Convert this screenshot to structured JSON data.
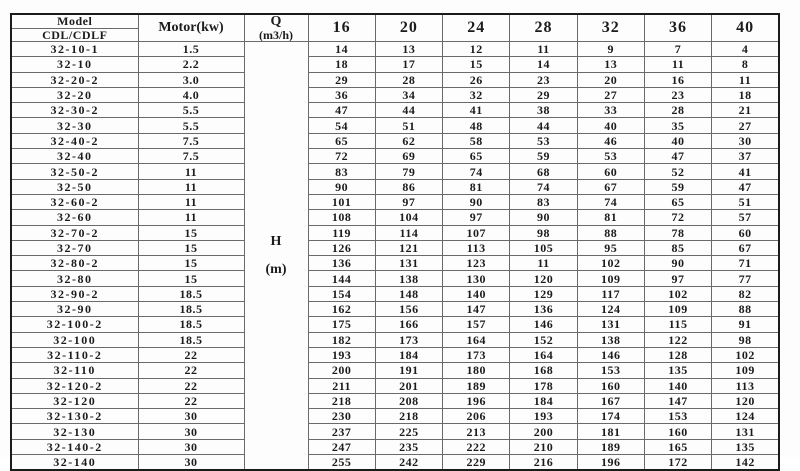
{
  "colors": {
    "background": "#fdfdfd",
    "border_dark": "#1b1b1b",
    "border_light": "#6a6a6a",
    "text": "#1c1c1c"
  },
  "table": {
    "header": {
      "model_title": "Model",
      "model_subtitle": "CDL/CDLF",
      "motor_label": "Motor(kw)",
      "q_label_line1": "Q",
      "q_label_line2": "(m3/h)",
      "flow_columns": [
        "16",
        "20",
        "24",
        "28",
        "32",
        "36",
        "40"
      ]
    },
    "h_label": {
      "line1": "H",
      "line2": "(m)"
    },
    "rows": [
      {
        "model": "32-10-1",
        "motor": "1.5",
        "values": [
          14,
          13,
          12,
          11,
          9,
          7,
          4
        ]
      },
      {
        "model": "32-10",
        "motor": "2.2",
        "values": [
          18,
          17,
          15,
          14,
          13,
          11,
          8
        ]
      },
      {
        "model": "32-20-2",
        "motor": "3.0",
        "values": [
          29,
          28,
          26,
          23,
          20,
          16,
          11
        ]
      },
      {
        "model": "32-20",
        "motor": "4.0",
        "values": [
          36,
          34,
          32,
          29,
          27,
          23,
          18
        ]
      },
      {
        "model": "32-30-2",
        "motor": "5.5",
        "values": [
          47,
          44,
          41,
          38,
          33,
          28,
          21
        ]
      },
      {
        "model": "32-30",
        "motor": "5.5",
        "values": [
          54,
          51,
          48,
          44,
          40,
          35,
          27
        ]
      },
      {
        "model": "32-40-2",
        "motor": "7.5",
        "values": [
          65,
          62,
          58,
          53,
          46,
          40,
          30
        ]
      },
      {
        "model": "32-40",
        "motor": "7.5",
        "values": [
          72,
          69,
          65,
          59,
          53,
          47,
          37
        ]
      },
      {
        "model": "32-50-2",
        "motor": "11",
        "values": [
          83,
          79,
          74,
          68,
          60,
          52,
          41
        ]
      },
      {
        "model": "32-50",
        "motor": "11",
        "values": [
          90,
          86,
          81,
          74,
          67,
          59,
          47
        ]
      },
      {
        "model": "32-60-2",
        "motor": "11",
        "values": [
          101,
          97,
          90,
          83,
          74,
          65,
          51
        ]
      },
      {
        "model": "32-60",
        "motor": "11",
        "values": [
          108,
          104,
          97,
          90,
          81,
          72,
          57
        ]
      },
      {
        "model": "32-70-2",
        "motor": "15",
        "values": [
          119,
          114,
          107,
          98,
          88,
          78,
          60
        ]
      },
      {
        "model": "32-70",
        "motor": "15",
        "values": [
          126,
          121,
          113,
          105,
          95,
          85,
          67
        ]
      },
      {
        "model": "32-80-2",
        "motor": "15",
        "values": [
          136,
          131,
          123,
          11,
          102,
          90,
          71
        ]
      },
      {
        "model": "32-80",
        "motor": "15",
        "values": [
          144,
          138,
          130,
          120,
          109,
          97,
          77
        ]
      },
      {
        "model": "32-90-2",
        "motor": "18.5",
        "values": [
          154,
          148,
          140,
          129,
          117,
          102,
          82
        ]
      },
      {
        "model": "32-90",
        "motor": "18.5",
        "values": [
          162,
          156,
          147,
          136,
          124,
          109,
          88
        ]
      },
      {
        "model": "32-100-2",
        "motor": "18.5",
        "values": [
          175,
          166,
          157,
          146,
          131,
          115,
          91
        ]
      },
      {
        "model": "32-100",
        "motor": "18.5",
        "values": [
          182,
          173,
          164,
          152,
          138,
          122,
          98
        ]
      },
      {
        "model": "32-110-2",
        "motor": "22",
        "values": [
          193,
          184,
          173,
          164,
          146,
          128,
          102
        ]
      },
      {
        "model": "32-110",
        "motor": "22",
        "values": [
          200,
          191,
          180,
          168,
          153,
          135,
          109
        ]
      },
      {
        "model": "32-120-2",
        "motor": "22",
        "values": [
          211,
          201,
          189,
          178,
          160,
          140,
          113
        ]
      },
      {
        "model": "32-120",
        "motor": "22",
        "values": [
          218,
          208,
          196,
          184,
          167,
          147,
          120
        ]
      },
      {
        "model": "32-130-2",
        "motor": "30",
        "values": [
          230,
          218,
          206,
          193,
          174,
          153,
          124
        ]
      },
      {
        "model": "32-130",
        "motor": "30",
        "values": [
          237,
          225,
          213,
          200,
          181,
          160,
          131
        ]
      },
      {
        "model": "32-140-2",
        "motor": "30",
        "values": [
          247,
          235,
          222,
          210,
          189,
          165,
          135
        ]
      },
      {
        "model": "32-140",
        "motor": "30",
        "values": [
          255,
          242,
          229,
          216,
          196,
          172,
          142
        ]
      }
    ]
  }
}
